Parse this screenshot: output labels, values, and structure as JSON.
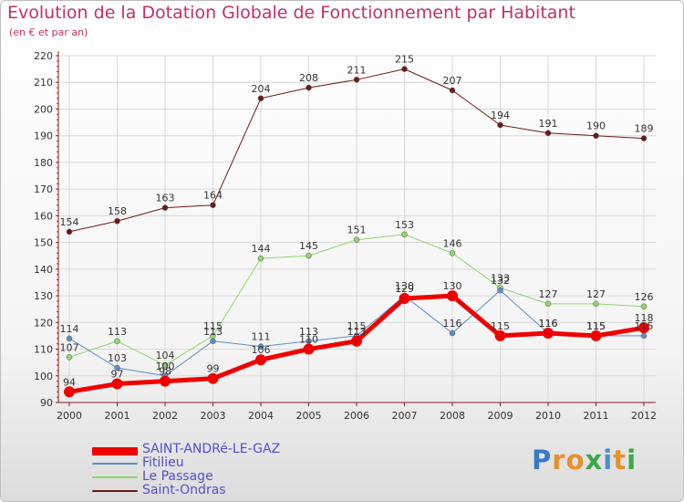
{
  "title": "Evolution de la Dotation Globale de Fonctionnement par Habitant",
  "subtitle": "(en € et par an)",
  "logo_text": "Proxiti",
  "colors": {
    "title": "#c0306a",
    "axis": "#8b1a1a",
    "grid": "#d8d8d8",
    "legend_text": "#5050d0"
  },
  "chart_data": {
    "type": "line",
    "title": "Evolution de la Dotation Globale de Fonctionnement par Habitant",
    "subtitle": "(en € et par an)",
    "xlabel": "",
    "ylabel": "",
    "categories": [
      "2000",
      "2001",
      "2002",
      "2003",
      "2004",
      "2005",
      "2006",
      "2007",
      "2008",
      "2009",
      "2010",
      "2011",
      "2012"
    ],
    "ylim": [
      90,
      220
    ],
    "yticks": [
      90,
      100,
      110,
      120,
      130,
      140,
      150,
      160,
      170,
      180,
      190,
      200,
      210,
      220
    ],
    "grid": true,
    "legend_position": "bottom-left",
    "series": [
      {
        "name": "Saint-Ondras",
        "color": "#6b1a1a",
        "width": 1,
        "marker": 3,
        "values": [
          154,
          158,
          163,
          164,
          204,
          208,
          211,
          215,
          207,
          194,
          191,
          190,
          189
        ],
        "labels": [
          "154",
          "158",
          "163",
          "164",
          "204",
          "208",
          "211",
          "215",
          "207",
          "194",
          "191",
          "190",
          "189"
        ]
      },
      {
        "name": "Le Passage",
        "color": "#8fd66a",
        "width": 1,
        "marker": 3,
        "values": [
          107,
          113,
          104,
          115,
          144,
          145,
          151,
          153,
          146,
          133,
          127,
          127,
          126
        ],
        "labels": [
          "107",
          "113",
          "104",
          "115",
          "144",
          "145",
          "151",
          "153",
          "146",
          "133",
          "127",
          "127",
          "126"
        ]
      },
      {
        "name": "Fitilieu",
        "color": "#5b8fc8",
        "width": 1,
        "marker": 3,
        "values": [
          114,
          103,
          100,
          113,
          111,
          113,
          115,
          130,
          116,
          132,
          116,
          115,
          115
        ],
        "labels": [
          "114",
          "103",
          "100",
          "113",
          "111",
          "113",
          "115",
          "130",
          "116",
          "132",
          "116",
          "115",
          "115"
        ]
      },
      {
        "name": "SAINT-ANDRé-LE-GAZ",
        "color": "#ee0000",
        "width": 5,
        "marker": 6,
        "values": [
          94,
          97,
          98,
          99,
          106,
          110,
          113,
          129,
          130,
          115,
          116,
          115,
          118
        ],
        "labels": [
          "94",
          "97",
          "98",
          "99",
          "106",
          "110",
          "113",
          "129",
          "130",
          "115",
          "116",
          "115",
          "118"
        ]
      }
    ]
  },
  "legend": [
    {
      "name": "SAINT-ANDRé-LE-GAZ",
      "color": "#ee0000",
      "thickness": 9
    },
    {
      "name": "Fitilieu",
      "color": "#5b8fc8",
      "thickness": 2
    },
    {
      "name": "Le Passage",
      "color": "#8fd66a",
      "thickness": 2
    },
    {
      "name": "Saint-Ondras",
      "color": "#6b1a1a",
      "thickness": 2
    }
  ]
}
